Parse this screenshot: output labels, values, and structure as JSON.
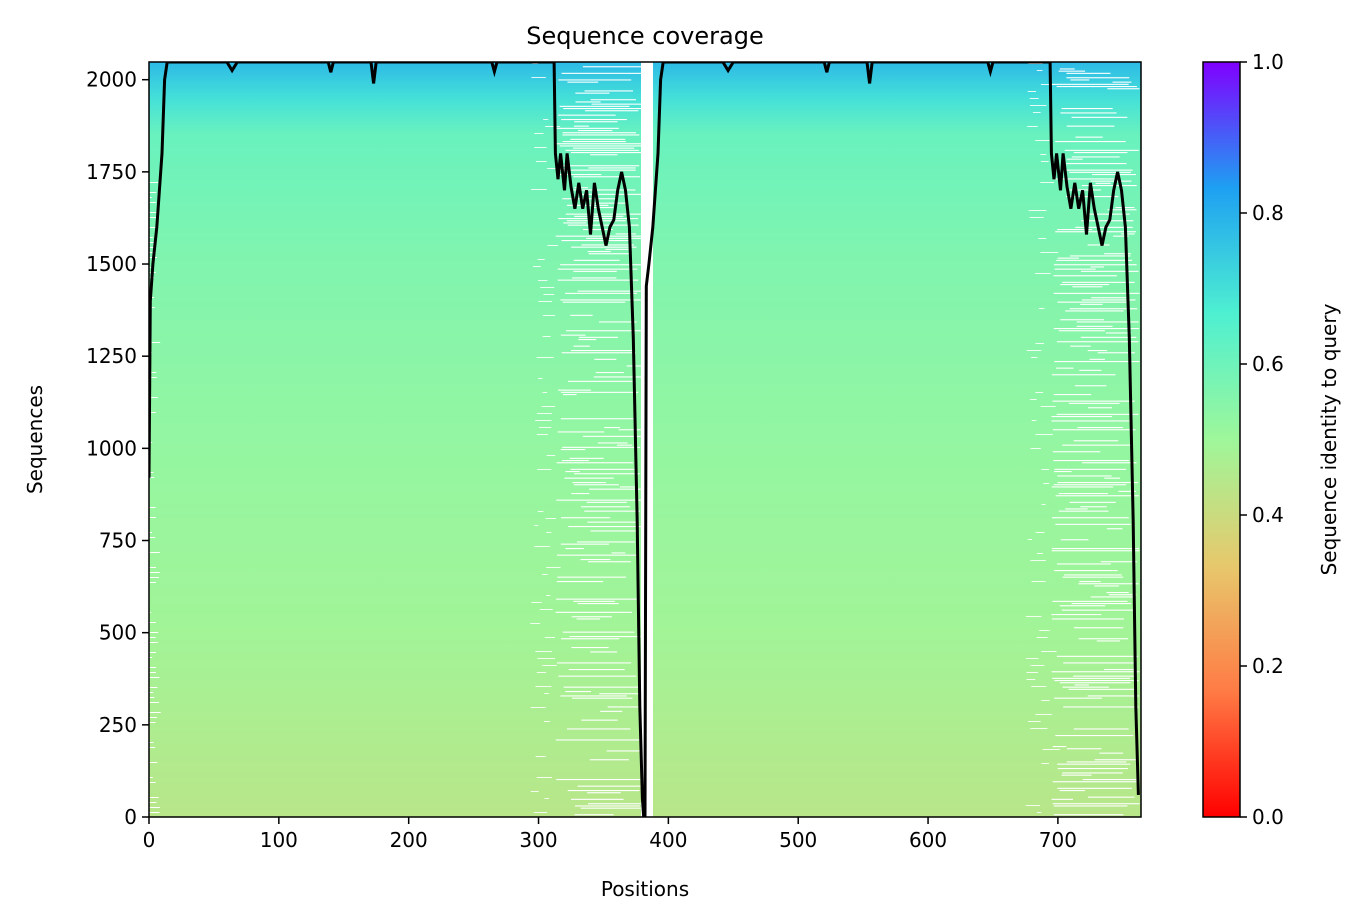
{
  "chart_data": {
    "type": "heatmap",
    "title": "Sequence coverage",
    "xlabel": "Positions",
    "ylabel": "Sequences",
    "xlim": [
      0,
      764
    ],
    "ylim": [
      0,
      2048
    ],
    "xticks": [
      0,
      100,
      200,
      300,
      400,
      500,
      600,
      700
    ],
    "yticks": [
      0,
      250,
      500,
      750,
      1000,
      1250,
      1500,
      1750,
      2000
    ],
    "grid": false,
    "segment_boundary": 382,
    "colorbar": {
      "label": "Sequence identity to query",
      "range": [
        0.0,
        1.0
      ],
      "ticks": [
        "0.0",
        "0.2",
        "0.4",
        "0.6",
        "0.8",
        "1.0"
      ],
      "colormap": "rainbow_r",
      "colors": [
        "#ff0000",
        "#ff7b45",
        "#e7c86c",
        "#9ef79a",
        "#4ef0d1",
        "#1ea0f2",
        "#8000ff"
      ]
    },
    "identity_gradient": [
      {
        "y": 0,
        "identity": 0.44
      },
      {
        "y": 500,
        "identity": 0.49
      },
      {
        "y": 1000,
        "identity": 0.52
      },
      {
        "y": 1500,
        "identity": 0.56
      },
      {
        "y": 1850,
        "identity": 0.61
      },
      {
        "y": 1950,
        "identity": 0.7
      },
      {
        "y": 2048,
        "identity": 0.78
      }
    ],
    "sparse_regions": [
      {
        "x_start": 313,
        "x_end": 381
      },
      {
        "x_start": 695,
        "x_end": 763
      }
    ],
    "coverage_line": {
      "color": "#000000",
      "points": [
        [
          0,
          920
        ],
        [
          1,
          1400
        ],
        [
          3,
          1500
        ],
        [
          6,
          1600
        ],
        [
          8,
          1700
        ],
        [
          10,
          1800
        ],
        [
          12,
          2000
        ],
        [
          14,
          2048
        ],
        [
          60,
          2048
        ],
        [
          64,
          2025
        ],
        [
          68,
          2048
        ],
        [
          138,
          2048
        ],
        [
          140,
          2020
        ],
        [
          142,
          2048
        ],
        [
          171,
          2048
        ],
        [
          173,
          1990
        ],
        [
          175,
          2048
        ],
        [
          264,
          2048
        ],
        [
          266,
          2022
        ],
        [
          268,
          2048
        ],
        [
          312,
          2048
        ],
        [
          313,
          1800
        ],
        [
          315,
          1730
        ],
        [
          317,
          1800
        ],
        [
          320,
          1700
        ],
        [
          322,
          1800
        ],
        [
          325,
          1710
        ],
        [
          328,
          1650
        ],
        [
          331,
          1720
        ],
        [
          334,
          1650
        ],
        [
          337,
          1700
        ],
        [
          340,
          1580
        ],
        [
          343,
          1720
        ],
        [
          346,
          1650
        ],
        [
          349,
          1600
        ],
        [
          352,
          1550
        ],
        [
          355,
          1600
        ],
        [
          358,
          1620
        ],
        [
          361,
          1700
        ],
        [
          364,
          1750
        ],
        [
          367,
          1700
        ],
        [
          370,
          1600
        ],
        [
          373,
          1300
        ],
        [
          376,
          800
        ],
        [
          378,
          300
        ],
        [
          380,
          50
        ],
        [
          381,
          0
        ],
        [
          382,
          0
        ],
        [
          383,
          1440
        ],
        [
          385,
          1500
        ],
        [
          388,
          1600
        ],
        [
          390,
          1700
        ],
        [
          392,
          1800
        ],
        [
          394,
          2000
        ],
        [
          396,
          2048
        ],
        [
          442,
          2048
        ],
        [
          446,
          2025
        ],
        [
          450,
          2048
        ],
        [
          520,
          2048
        ],
        [
          522,
          2020
        ],
        [
          524,
          2048
        ],
        [
          553,
          2048
        ],
        [
          555,
          1990
        ],
        [
          557,
          2048
        ],
        [
          646,
          2048
        ],
        [
          648,
          2022
        ],
        [
          650,
          2048
        ],
        [
          694,
          2048
        ],
        [
          695,
          1800
        ],
        [
          697,
          1730
        ],
        [
          699,
          1800
        ],
        [
          702,
          1700
        ],
        [
          704,
          1800
        ],
        [
          707,
          1710
        ],
        [
          710,
          1650
        ],
        [
          713,
          1720
        ],
        [
          716,
          1650
        ],
        [
          719,
          1700
        ],
        [
          722,
          1580
        ],
        [
          725,
          1720
        ],
        [
          728,
          1650
        ],
        [
          731,
          1600
        ],
        [
          734,
          1550
        ],
        [
          737,
          1600
        ],
        [
          740,
          1620
        ],
        [
          743,
          1700
        ],
        [
          746,
          1750
        ],
        [
          749,
          1700
        ],
        [
          752,
          1600
        ],
        [
          755,
          1300
        ],
        [
          758,
          800
        ],
        [
          760,
          300
        ],
        [
          762,
          60
        ]
      ]
    }
  }
}
